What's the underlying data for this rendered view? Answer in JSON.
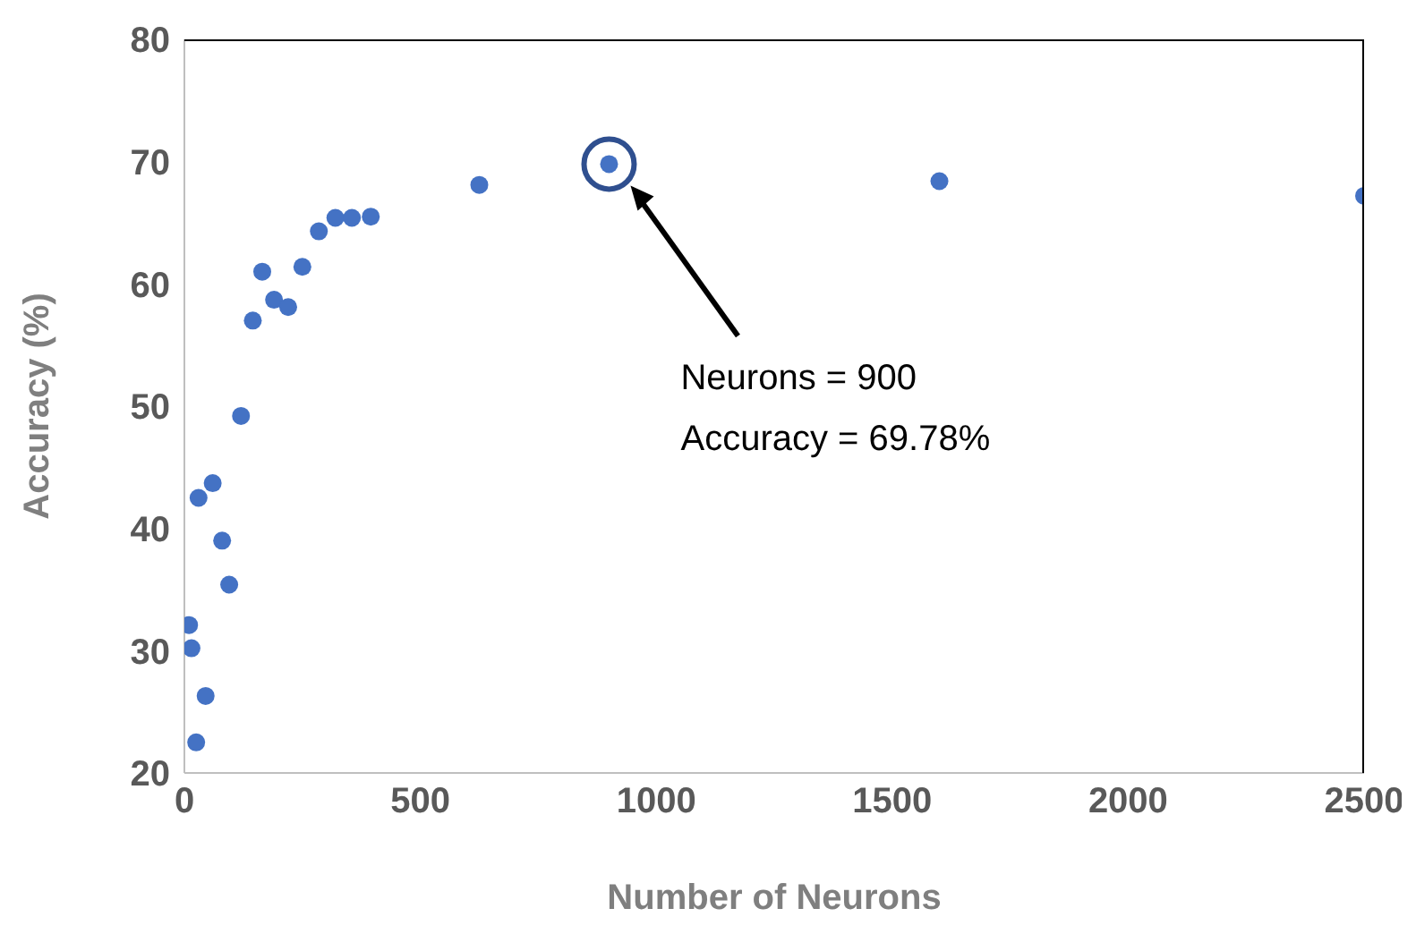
{
  "chart_data": {
    "type": "scatter",
    "xlabel": "Number of Neurons",
    "ylabel": "Accuracy (%)",
    "x": [
      10,
      15,
      45,
      25,
      30,
      60,
      80,
      95,
      120,
      145,
      165,
      190,
      220,
      250,
      285,
      320,
      355,
      395,
      625,
      900,
      1600,
      2500
    ],
    "series": [
      {
        "color": "#4472c4",
        "values": [
          32.1,
          30.2,
          26.3,
          22.5,
          42.5,
          43.7,
          39.0,
          35.4,
          49.2,
          57.0,
          61.0,
          58.7,
          58.1,
          61.4,
          64.3,
          65.4,
          65.4,
          65.5,
          68.1,
          69.8,
          68.4,
          67.2
        ]
      }
    ],
    "xlim": [
      0,
      2500
    ],
    "xticks": [
      0,
      500,
      1000,
      1500,
      2000,
      2500
    ],
    "ylim": [
      20,
      80
    ],
    "yticks": [
      20,
      30,
      40,
      50,
      60,
      70,
      80
    ],
    "grid": false,
    "legend": false,
    "marker": "circle",
    "annotations": [
      "Neurons = 900\nAccuracy = 69.78%"
    ]
  }
}
